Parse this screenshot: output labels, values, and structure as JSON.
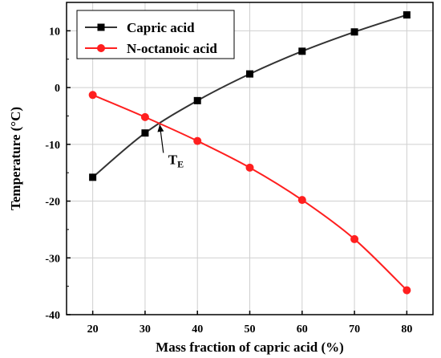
{
  "chart_data": {
    "type": "line",
    "title": "",
    "xlabel": "Mass fraction of capric acid (%)",
    "ylabel": "Temperature (°C)",
    "xlim": [
      15,
      85
    ],
    "ylim": [
      -40,
      15
    ],
    "x_ticks": [
      "20",
      "30",
      "40",
      "50",
      "60",
      "70",
      "80"
    ],
    "y_ticks": [
      "-40",
      "-30",
      "-20",
      "-10",
      "0",
      "10"
    ],
    "grid": true,
    "legend_position": "top-left",
    "series": [
      {
        "name": "Capric acid",
        "color": "#333333",
        "marker": "square",
        "x": [
          20,
          30,
          40,
          50,
          60,
          70,
          80
        ],
        "y": [
          -15.8,
          -8.0,
          -2.3,
          2.4,
          6.4,
          9.8,
          12.8
        ]
      },
      {
        "name": "N-octanoic acid",
        "color": "#ff1f1f",
        "marker": "circle",
        "x": [
          20,
          30,
          40,
          50,
          60,
          70,
          80
        ],
        "y": [
          -1.3,
          -5.2,
          -9.4,
          -14.1,
          -19.8,
          -26.7,
          -35.7
        ]
      }
    ],
    "annotation": {
      "label_main": "T",
      "label_sub": "E",
      "point": [
        32.8,
        -6.5
      ],
      "text_anchor": [
        33.5,
        -11.5
      ]
    }
  }
}
